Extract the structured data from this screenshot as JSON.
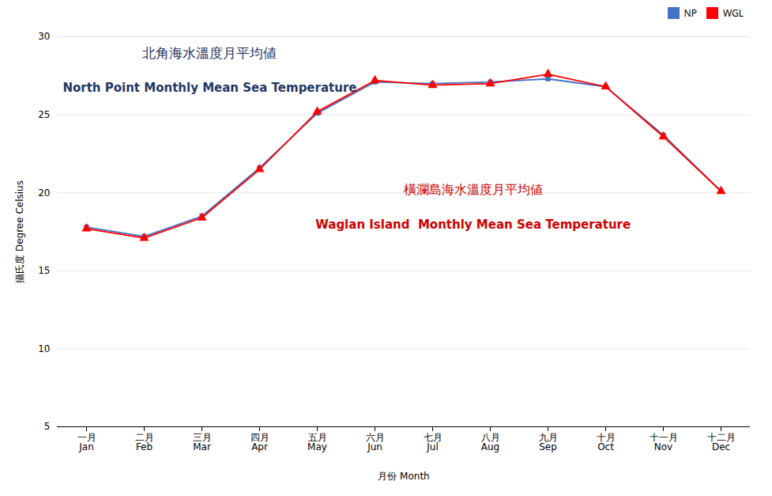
{
  "chart_data": {
    "type": "line",
    "xlabel": "月份 Month",
    "ylabel": "攝氏度 Degree Celsius",
    "categories": [
      "一月\nJan",
      "二月\nFeb",
      "三月\nMar",
      "四月\nApr",
      "五月\nMay",
      "六月\nJun",
      "七月\nJul",
      "八月\nAug",
      "九月\nSep",
      "十月\nOct",
      "十一月\nNov",
      "十二月\nDec"
    ],
    "series": [
      {
        "name": "NP",
        "color": "#4472C4",
        "marker": "square",
        "values": [
          17.8,
          17.2,
          18.5,
          21.6,
          25.1,
          27.1,
          27.0,
          27.1,
          27.3,
          26.8,
          23.7,
          20.1
        ]
      },
      {
        "name": "WGL",
        "color": "#FF0000",
        "marker": "triangle",
        "values": [
          17.7,
          17.1,
          18.4,
          21.5,
          25.2,
          27.2,
          26.9,
          27.0,
          27.6,
          26.8,
          23.6,
          20.1
        ]
      }
    ],
    "annotations": [
      {
        "text": "北角海水溫度月平均値",
        "color": "#1F3864"
      },
      {
        "text": "North Point Monthly Mean Sea Temperature",
        "color": "#1F3864"
      },
      {
        "text": "橫瀾島海水溫度月平均値",
        "color": "#CC0000"
      },
      {
        "text": "Waglan Island  Monthly Mean Sea Temperature",
        "color": "#CC0000"
      }
    ],
    "ylim": [
      5,
      30
    ],
    "yticks": [
      5,
      10,
      15,
      20,
      25,
      30
    ],
    "grid": true,
    "legend": "right"
  }
}
